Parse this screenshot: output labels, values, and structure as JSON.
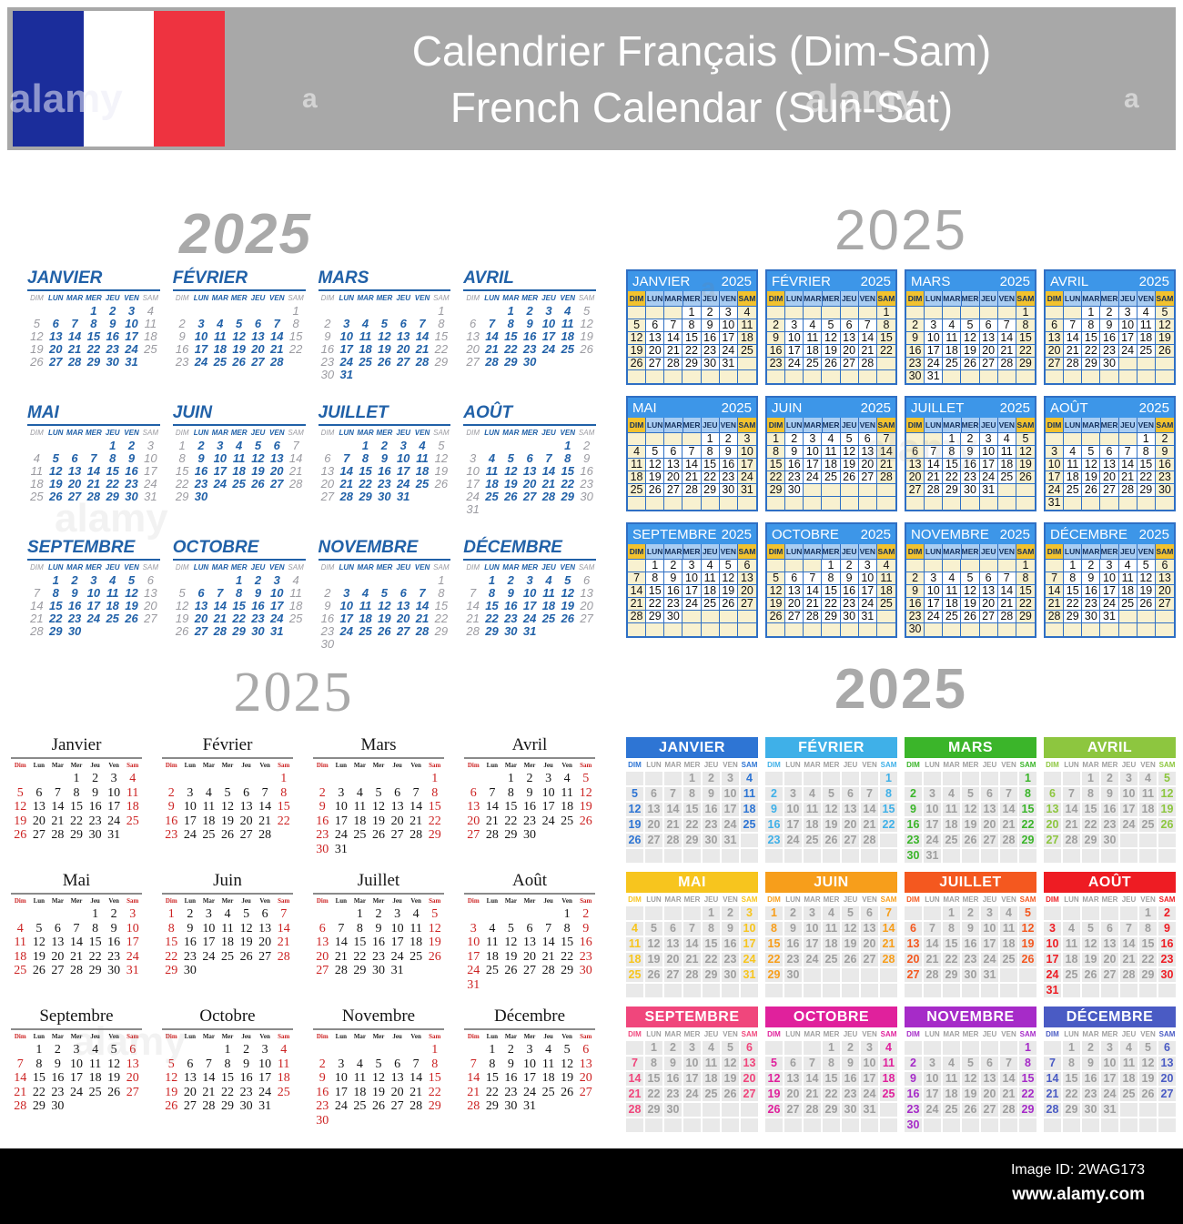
{
  "banner": {
    "title_fr": "Calendrier Français (Dim-Sam)",
    "title_en": "French Calendar (Sun-Sat)"
  },
  "year": "2025",
  "weekdays": {
    "upper": [
      "DIM",
      "LUN",
      "MAR",
      "MER",
      "JEU",
      "VEN",
      "SAM"
    ],
    "title": [
      "Dim",
      "Lun",
      "Mar",
      "Mer",
      "Jeu",
      "Ven",
      "Sam"
    ]
  },
  "months": [
    {
      "upper": "JANVIER",
      "title": "Janvier",
      "days": 31,
      "start": 3
    },
    {
      "upper": "FÉVRIER",
      "title": "Février",
      "days": 28,
      "start": 6
    },
    {
      "upper": "MARS",
      "title": "Mars",
      "days": 31,
      "start": 6
    },
    {
      "upper": "AVRIL",
      "title": "Avril",
      "days": 30,
      "start": 2
    },
    {
      "upper": "MAI",
      "title": "Mai",
      "days": 31,
      "start": 4
    },
    {
      "upper": "JUIN",
      "title": "Juin",
      "days": 30,
      "start": 0
    },
    {
      "upper": "JUILLET",
      "title": "Juillet",
      "days": 31,
      "start": 2
    },
    {
      "upper": "AOÛT",
      "title": "Août",
      "days": 31,
      "start": 5
    },
    {
      "upper": "SEPTEMBRE",
      "title": "Septembre",
      "days": 30,
      "start": 1
    },
    {
      "upper": "OCTOBRE",
      "title": "Octobre",
      "days": 31,
      "start": 3
    },
    {
      "upper": "NOVEMBRE",
      "title": "Novembre",
      "days": 30,
      "start": 6
    },
    {
      "upper": "DÉCEMBRE",
      "title": "Décembre",
      "days": 31,
      "start": 1
    }
  ],
  "style4_month_colors": [
    "#2e75d4",
    "#3fb0e8",
    "#3bb52a",
    "#8dc63f",
    "#f7c51e",
    "#f79e1b",
    "#f4581f",
    "#ee1c23",
    "#f0467c",
    "#e0219c",
    "#a62bc8",
    "#4a5bc4"
  ],
  "palette": {
    "banner-gray": "#a8a8a8",
    "flag-blue": "#1b2d9b",
    "flag-red": "#ee3340",
    "year-gray": "#a9a9a9",
    "cal1-blue": "#2161a8",
    "cal1-gray": "#9b9ba1",
    "cal2-header-blue": "#3d96e8",
    "cal2-border-blue": "#2f6fc4",
    "cal2-dayhead-blue": "#a9cdf2",
    "cal2-yellow": "#f2c22e",
    "cal2-cream": "#f8f1d0",
    "cal2-daytext": "#14305c",
    "cal3-red": "#cc2222",
    "cal3-ink": "#151515",
    "cal4-cell-gray": "#e9e9e9",
    "cal4-num-gray": "#9f9f9f",
    "footer-black": "#000000"
  },
  "watermark": {
    "brand": "alamy",
    "brand_short": "a"
  },
  "footer": {
    "image_id": "Image ID: 2WAG173",
    "url": "www.alamy.com"
  }
}
